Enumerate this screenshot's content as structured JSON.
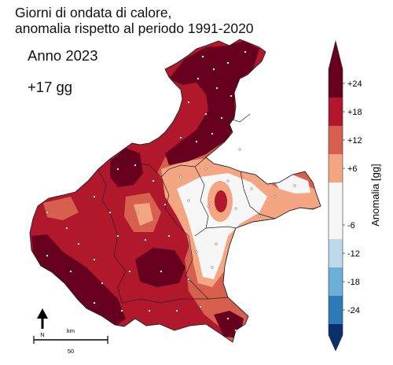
{
  "title": {
    "line1": "Giorni di ondata di calore,",
    "line2": "anomalia rispetto al periodo 1991-2020"
  },
  "year_label": "Anno 2023",
  "anomaly_value": "+17 gg",
  "colorbar": {
    "label": "Anomalia [gg]",
    "ticks": [
      "+24",
      "+18",
      "+12",
      "+6",
      "-6",
      "-12",
      "-18",
      "-24"
    ],
    "classes": [
      {
        "range": "above +24",
        "color": "#67001f"
      },
      {
        "range": "+18 to +24",
        "color": "#b2182b"
      },
      {
        "range": "+12 to +18",
        "color": "#d6604d"
      },
      {
        "range": "+6 to +12",
        "color": "#f4a582"
      },
      {
        "range": "-6 to +6",
        "color": "#f7f7f7"
      },
      {
        "range": "-12 to -6",
        "color": "#bcd9ea"
      },
      {
        "range": "-18 to -12",
        "color": "#6baed6"
      },
      {
        "range": "-24 to -18",
        "color": "#2c7bb6"
      },
      {
        "range": "below -24",
        "color": "#08306b"
      }
    ]
  },
  "north_arrow": {
    "label": "N"
  },
  "scale_bar": {
    "unit": "km",
    "value": "50"
  }
}
